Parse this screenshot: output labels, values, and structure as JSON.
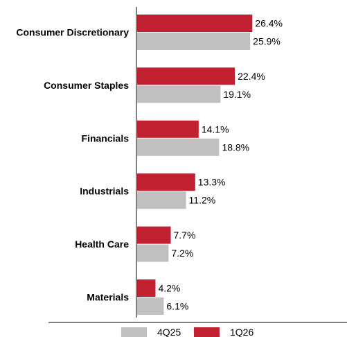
{
  "chart_data": {
    "type": "bar",
    "orientation": "horizontal",
    "categories": [
      "Consumer Discretionary",
      "Consumer Staples",
      "Financials",
      "Industrials",
      "Health Care",
      "Materials"
    ],
    "series": [
      {
        "name": "1Q26",
        "color": "#c0202f",
        "values": [
          26.4,
          22.4,
          14.1,
          13.3,
          7.7,
          4.2
        ],
        "labels": [
          "26.4%",
          "22.4%",
          "14.1%",
          "13.3%",
          "7.7%",
          "4.2%"
        ]
      },
      {
        "name": "4Q25",
        "color": "#c0c0c0",
        "values": [
          25.9,
          19.1,
          18.8,
          11.2,
          7.2,
          6.1
        ],
        "labels": [
          "25.9%",
          "19.1%",
          "18.8%",
          "11.2%",
          "7.2%",
          "6.1%"
        ]
      }
    ],
    "legend": {
      "position": "bottom",
      "items": [
        "4Q25",
        "1Q26"
      ]
    },
    "grid": false,
    "xlabel": "",
    "ylabel": ""
  }
}
